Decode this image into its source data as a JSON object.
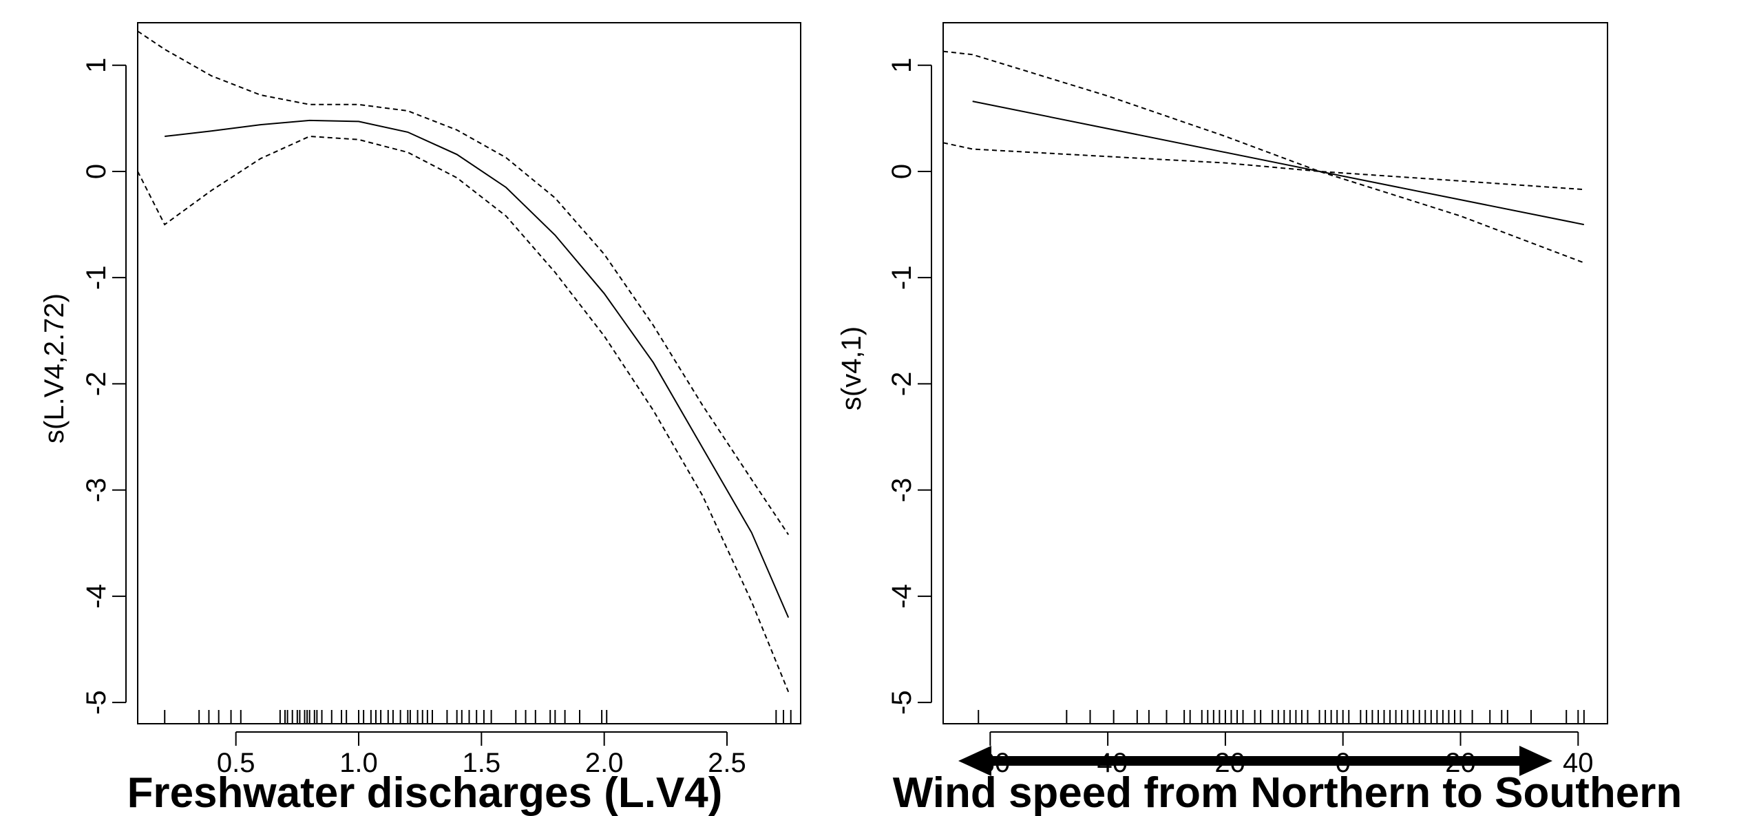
{
  "chart_data": [
    {
      "type": "line",
      "title": "",
      "xlabel": "Freshwater discharges (L.V4)",
      "ylabel": "s(L.V4,2.72)",
      "xlim": [
        0.1,
        2.8
      ],
      "ylim": [
        -5.2,
        1.4
      ],
      "xticks": [
        0.5,
        1.0,
        1.5,
        2.0,
        2.5
      ],
      "xtick_labels": [
        "0.5",
        "1.0",
        "1.5",
        "2.0",
        "2.5"
      ],
      "yticks": [
        1,
        0,
        -1,
        -2,
        -3,
        -4,
        -5
      ],
      "ytick_labels": [
        "1",
        "0",
        "-1",
        "-2",
        "-3",
        "-4",
        "-5"
      ],
      "grid": false,
      "legend": "none",
      "series": [
        {
          "style": "solid",
          "x": [
            0.21,
            0.4,
            0.6,
            0.8,
            1.0,
            1.2,
            1.4,
            1.6,
            1.8,
            2.0,
            2.2,
            2.4,
            2.6,
            2.75
          ],
          "y": [
            0.33,
            0.38,
            0.44,
            0.48,
            0.47,
            0.37,
            0.16,
            -0.15,
            -0.6,
            -1.15,
            -1.8,
            -2.6,
            -3.4,
            -4.2
          ]
        },
        {
          "style": "dashed",
          "x": [
            0.1,
            0.21,
            0.4,
            0.6,
            0.8,
            1.0,
            1.2,
            1.4,
            1.6,
            1.8,
            2.0,
            2.2,
            2.4,
            2.6,
            2.75
          ],
          "y": [
            1.32,
            1.15,
            0.9,
            0.72,
            0.63,
            0.63,
            0.57,
            0.39,
            0.13,
            -0.25,
            -0.78,
            -1.45,
            -2.2,
            -2.9,
            -3.42
          ]
        },
        {
          "style": "dashed",
          "x": [
            0.1,
            0.21,
            0.4,
            0.6,
            0.8,
            1.0,
            1.2,
            1.4,
            1.6,
            1.8,
            2.0,
            2.2,
            2.4,
            2.6,
            2.75
          ],
          "y": [
            0.0,
            -0.5,
            -0.18,
            0.12,
            0.33,
            0.3,
            0.18,
            -0.06,
            -0.42,
            -0.95,
            -1.55,
            -2.25,
            -3.05,
            -4.05,
            -4.9
          ]
        }
      ],
      "rug": [
        0.21,
        0.35,
        0.39,
        0.43,
        0.48,
        0.52,
        0.68,
        0.7,
        0.71,
        0.73,
        0.75,
        0.76,
        0.78,
        0.79,
        0.8,
        0.82,
        0.83,
        0.85,
        0.89,
        0.93,
        0.95,
        1.0,
        1.02,
        1.05,
        1.07,
        1.09,
        1.12,
        1.14,
        1.17,
        1.2,
        1.21,
        1.24,
        1.26,
        1.28,
        1.3,
        1.36,
        1.4,
        1.42,
        1.45,
        1.48,
        1.51,
        1.54,
        1.64,
        1.68,
        1.72,
        1.78,
        1.8,
        1.84,
        1.9,
        1.99,
        2.01,
        2.7,
        2.73,
        2.76
      ]
    },
    {
      "type": "line",
      "title": "",
      "xlabel": "Wind speed from Northern to Southern",
      "ylabel": "s(v4,1)",
      "xlim": [
        -68,
        45
      ],
      "ylim": [
        -5.2,
        1.4
      ],
      "xticks": [
        -60,
        -40,
        -20,
        0,
        20,
        40
      ],
      "xtick_labels": [
        "-60",
        "-40",
        "-20",
        "0",
        "20",
        "40"
      ],
      "yticks": [
        1,
        0,
        -1,
        -2,
        -3,
        -4,
        -5
      ],
      "ytick_labels": [
        "1",
        "0",
        "-1",
        "-2",
        "-3",
        "-4",
        "-5"
      ],
      "grid": false,
      "legend": "none",
      "annotation": "double-headed arrow below the x axis",
      "series": [
        {
          "style": "solid",
          "x": [
            -63,
            -4,
            41
          ],
          "y": [
            0.66,
            0.0,
            -0.5
          ]
        },
        {
          "style": "dashed",
          "x": [
            -68,
            -63,
            -40,
            -20,
            -4,
            20,
            41
          ],
          "y": [
            1.13,
            1.1,
            0.71,
            0.33,
            0.0,
            -0.42,
            -0.86
          ]
        },
        {
          "style": "dashed",
          "x": [
            -68,
            -63,
            -40,
            -20,
            -4,
            20,
            41
          ],
          "y": [
            0.27,
            0.21,
            0.14,
            0.08,
            0.0,
            -0.09,
            -0.17
          ]
        }
      ],
      "rug": [
        -62,
        -47,
        -43,
        -39,
        -35,
        -33,
        -30,
        -27,
        -26,
        -24,
        -23,
        -22,
        -21,
        -20,
        -19,
        -18,
        -17,
        -15,
        -14,
        -12,
        -11,
        -10,
        -9,
        -8,
        -7,
        -6,
        -4,
        -3,
        -2,
        -1,
        0,
        1,
        3,
        4,
        5,
        6,
        7,
        8,
        9,
        10,
        11,
        12,
        13,
        14,
        15,
        16,
        17,
        18,
        19,
        20,
        22,
        25,
        27,
        28,
        32,
        38,
        40,
        41
      ]
    }
  ]
}
